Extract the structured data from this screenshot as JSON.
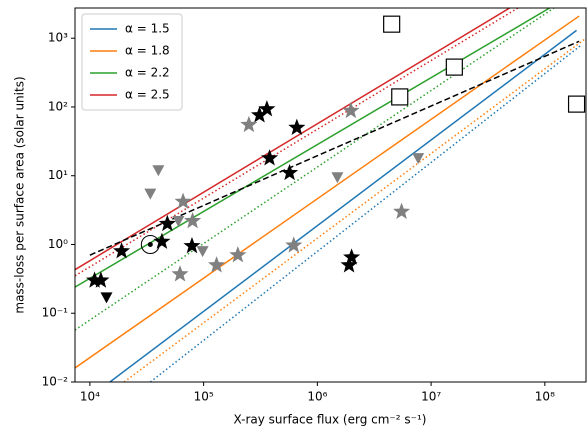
{
  "chart_data": {
    "type": "scatter",
    "xlabel": "X-ray surface flux (erg cm⁻² s⁻¹)",
    "ylabel": "mass-loss per surface area (solar units)",
    "xscale": "log",
    "yscale": "log",
    "xlim": [
      7400,
      230000000
    ],
    "ylim": [
      0.01,
      2750
    ],
    "xticks": [
      {
        "value": 10000,
        "label": "10⁴"
      },
      {
        "value": 100000,
        "label": "10⁵"
      },
      {
        "value": 1000000,
        "label": "10⁶"
      },
      {
        "value": 10000000,
        "label": "10⁷"
      },
      {
        "value": 100000000,
        "label": "10⁸"
      }
    ],
    "yticks": [
      {
        "value": 0.01,
        "label": "10⁻²"
      },
      {
        "value": 0.1,
        "label": "10⁻¹"
      },
      {
        "value": 1,
        "label": "10⁰"
      },
      {
        "value": 10,
        "label": "10¹"
      },
      {
        "value": 100,
        "label": "10²"
      },
      {
        "value": 1000,
        "label": "10³"
      }
    ],
    "legend": "upper left",
    "lines": [
      {
        "name": "α = 1.5",
        "color": "#1f77b4",
        "style": "solid",
        "x": [
          15000,
          190000000
        ],
        "y": [
          0.01,
          1300
        ]
      },
      {
        "color": "#1f77b4",
        "style": "dotted",
        "x": [
          34000,
          210000000
        ],
        "y": [
          0.01,
          800
        ]
      },
      {
        "name": "α = 1.8",
        "color": "#ff7f0e",
        "style": "solid",
        "x": [
          7400,
          200000000
        ],
        "y": [
          0.016,
          2100
        ]
      },
      {
        "color": "#ff7f0e",
        "style": "dotted",
        "x": [
          20000,
          230000000
        ],
        "y": [
          0.01,
          1000
        ]
      },
      {
        "name": "α = 2.2",
        "color": "#2ca02c",
        "style": "solid",
        "x": [
          7400,
          110000000
        ],
        "y": [
          0.24,
          2750
        ]
      },
      {
        "color": "#2ca02c",
        "style": "dotted",
        "x": [
          7400,
          120000000
        ],
        "y": [
          0.057,
          2750
        ]
      },
      {
        "name": "α = 2.5",
        "color": "#d62728",
        "style": "solid",
        "x": [
          7400,
          49000000
        ],
        "y": [
          0.43,
          2750
        ]
      },
      {
        "color": "#d62728",
        "style": "dotted",
        "x": [
          7400,
          58000000
        ],
        "y": [
          0.35,
          2750
        ]
      },
      {
        "color": "#000000",
        "style": "dashed",
        "x": [
          10000,
          200000000
        ],
        "y": [
          0.7,
          900
        ]
      }
    ],
    "points": [
      {
        "marker": "star",
        "color": "#000000",
        "x": [
          11000,
          12500,
          19000,
          48000,
          43000,
          79000,
          310000,
          360000,
          380000,
          570000,
          660000,
          1900000,
          2000000
        ],
        "y": [
          0.3,
          0.3,
          0.8,
          2,
          1.1,
          0.95,
          76,
          93,
          18,
          11,
          50,
          0.5,
          0.65
        ]
      },
      {
        "marker": "star",
        "color": "#808080",
        "x": [
          250000,
          1970000,
          66000,
          80000,
          62000,
          130000,
          200000,
          620000,
          5500000
        ],
        "y": [
          55,
          88,
          4.2,
          2.2,
          0.37,
          0.5,
          0.7,
          0.97,
          3.0
        ]
      },
      {
        "marker": "triangle",
        "color": "#000000",
        "x": [
          14000
        ],
        "y": [
          0.17
        ]
      },
      {
        "marker": "triangle",
        "color": "#808080",
        "x": [
          40000,
          34000,
          60000,
          98000,
          1500000,
          7700000
        ],
        "y": [
          12,
          5.5,
          2.2,
          0.8,
          9.5,
          18
        ]
      },
      {
        "marker": "sun",
        "color": "#000000",
        "x": [
          34000
        ],
        "y": [
          1.0
        ]
      },
      {
        "marker": "square",
        "color": "#000000",
        "x": [
          4500000,
          16000000,
          5300000,
          190000000
        ],
        "y": [
          1600,
          380,
          140,
          110
        ]
      }
    ]
  }
}
